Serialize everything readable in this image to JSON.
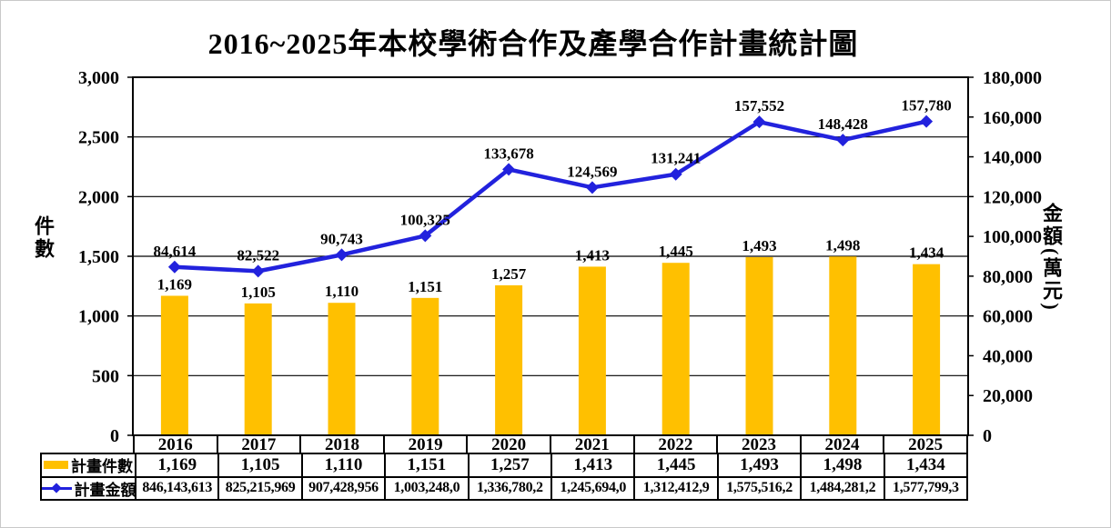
{
  "title": "2016~2025年本校學術合作及產學合作計畫統計圖",
  "chart_data": {
    "type": "bar+line",
    "categories": [
      "2016",
      "2017",
      "2018",
      "2019",
      "2020",
      "2021",
      "2022",
      "2023",
      "2024",
      "2025"
    ],
    "series": [
      {
        "name": "計畫件數",
        "type": "bar",
        "axis": "left",
        "color": "#FFC000",
        "values": [
          1169,
          1105,
          1110,
          1151,
          1257,
          1413,
          1445,
          1493,
          1498,
          1434
        ],
        "labels": [
          "1,169",
          "1,105",
          "1,110",
          "1,151",
          "1,257",
          "1,413",
          "1,445",
          "1,493",
          "1,498",
          "1,434"
        ]
      },
      {
        "name": "計畫金額",
        "type": "line",
        "axis": "right",
        "color": "#2222DD",
        "values": [
          84614,
          82522,
          90743,
          100325,
          133678,
          124569,
          131241,
          157552,
          148428,
          157780
        ],
        "labels": [
          "84,614",
          "82,522",
          "90,743",
          "100,325",
          "133,678",
          "124,569",
          "131,241",
          "157,552",
          "148,428",
          "157,780"
        ]
      }
    ],
    "left_axis": {
      "label": "件數",
      "min": 0,
      "max": 3000,
      "step": 500,
      "ticks": [
        "0",
        "500",
        "1,000",
        "1,500",
        "2,000",
        "2,500",
        "3,000"
      ]
    },
    "right_axis": {
      "label": "金額(萬元)",
      "min": 0,
      "max": 180000,
      "step": 20000,
      "ticks": [
        "0",
        "20,000",
        "40,000",
        "60,000",
        "80,000",
        "100,000",
        "120,000",
        "140,000",
        "160,000",
        "180,000"
      ]
    },
    "grid": "horizontal",
    "legend_position": "bottom-left-table"
  },
  "table": {
    "years": [
      "2016",
      "2017",
      "2018",
      "2019",
      "2020",
      "2021",
      "2022",
      "2023",
      "2024",
      "2025"
    ],
    "rows": [
      {
        "label": "計畫件數",
        "marker": "bar",
        "values": [
          "1,169",
          "1,105",
          "1,110",
          "1,151",
          "1,257",
          "1,413",
          "1,445",
          "1,493",
          "1,498",
          "1,434"
        ]
      },
      {
        "label": "計畫金額",
        "marker": "line",
        "values": [
          "846,143,613",
          "825,215,969",
          "907,428,956",
          "1,003,248,0",
          "1,336,780,2",
          "1,245,694,0",
          "1,312,412,9",
          "1,575,516,2",
          "1,484,281,2",
          "1,577,799,3"
        ]
      }
    ]
  }
}
